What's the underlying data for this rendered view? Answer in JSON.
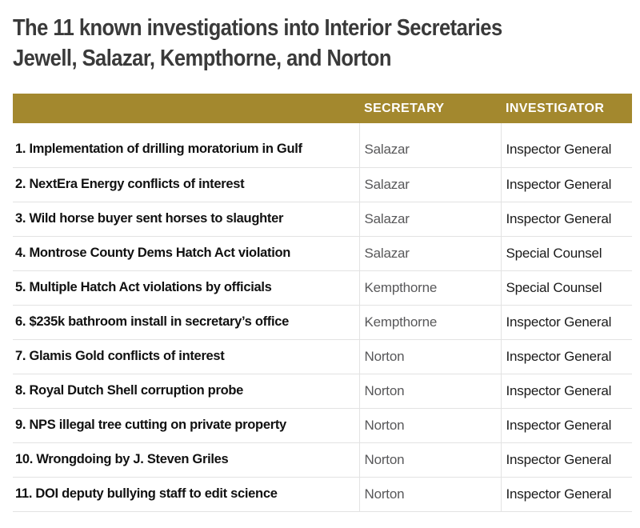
{
  "chart_data": {
    "type": "table",
    "title": "The 11 known investigations into Interior Secretaries Jewell, Salazar, Kempthorne, and Norton",
    "title_lines": [
      "The 11 known investigations into Interior Secretaries",
      "Jewell, Salazar, Kempthorne, and Norton"
    ],
    "column_headers": [
      "",
      "SECRETARY",
      "INVESTIGATOR"
    ],
    "rows": [
      {
        "investigation": "1. Implementation of drilling moratorium in Gulf",
        "secretary": "Salazar",
        "investigator": "Inspector General"
      },
      {
        "investigation": "2. NextEra Energy conflicts of interest",
        "secretary": "Salazar",
        "investigator": "Inspector General"
      },
      {
        "investigation": "3. Wild horse buyer sent horses to slaughter",
        "secretary": "Salazar",
        "investigator": "Inspector General"
      },
      {
        "investigation": "4. Montrose County Dems Hatch Act violation",
        "secretary": "Salazar",
        "investigator": "Special Counsel"
      },
      {
        "investigation": "5. Multiple Hatch Act violations by officials",
        "secretary": "Kempthorne",
        "investigator": "Special Counsel"
      },
      {
        "investigation": "6. $235k bathroom install in secretary’s office",
        "secretary": "Kempthorne",
        "investigator": "Inspector General"
      },
      {
        "investigation": "7. Glamis Gold conflicts of interest",
        "secretary": "Norton",
        "investigator": "Inspector General"
      },
      {
        "investigation": "8. Royal Dutch Shell corruption probe",
        "secretary": "Norton",
        "investigator": "Inspector General"
      },
      {
        "investigation": "9. NPS illegal tree cutting on private property",
        "secretary": "Norton",
        "investigator": "Inspector General"
      },
      {
        "investigation": "10. Wrongdoing by J. Steven Griles",
        "secretary": "Norton",
        "investigator": "Inspector General"
      },
      {
        "investigation": "11. DOI deputy bullying staff to edit science",
        "secretary": "Norton",
        "investigator": "Inspector General"
      }
    ],
    "layout": {
      "grid": "horizontal rules between rows, vertical rules between columns, no rule under gold header"
    }
  },
  "colors": {
    "page_background": "#ffffff",
    "header_background": "#a3882e",
    "header_text": "#ffffff",
    "title_text": "#3a3a3a",
    "case_text": "#111111",
    "secretary_text": "#58585a",
    "investigator_text": "#1a1a1a",
    "divider": "#e3e3e3"
  }
}
